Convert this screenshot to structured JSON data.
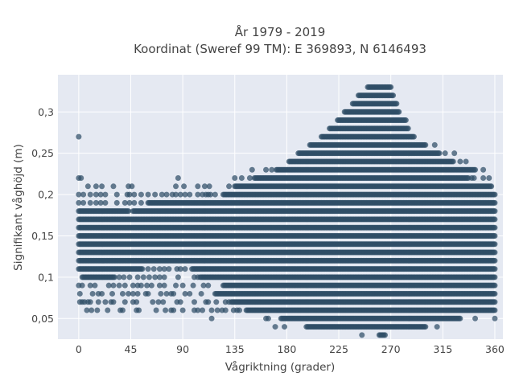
{
  "chart_data": {
    "type": "scatter",
    "title": "År 1979 - 2019",
    "subtitle": "Koordinat (Sweref 99 TM): E 369893, N 6146493",
    "xlabel": "Vågriktning (grader)",
    "ylabel": "Signifikant våghöjd (m)",
    "xlim": [
      -18,
      367
    ],
    "ylim": [
      0.025,
      0.345
    ],
    "x_ticks": [
      0,
      45,
      90,
      135,
      180,
      225,
      270,
      315,
      360
    ],
    "x_tick_labels": [
      "0",
      "45",
      "90",
      "135",
      "180",
      "225",
      "270",
      "315",
      "360"
    ],
    "y_ticks": [
      0.05,
      0.1,
      0.15,
      0.2,
      0.25,
      0.3
    ],
    "y_tick_labels": [
      "0,05",
      "0,1",
      "0,15",
      "0,2",
      "0,25",
      "0,3"
    ],
    "grid": true,
    "legend": "none",
    "marker_color": "#2f4e66",
    "plot_background": "#e5e9f2",
    "x_step": 1,
    "rows": [
      {
        "y": 0.03,
        "ranges": [
          [
            245,
            245
          ],
          [
            260,
            265
          ]
        ]
      },
      {
        "y": 0.04,
        "ranges": [
          [
            170,
            170
          ],
          [
            178,
            178
          ],
          [
            197,
            300
          ],
          [
            310,
            310
          ]
        ]
      },
      {
        "y": 0.05,
        "ranges": [
          [
            115,
            115
          ],
          [
            162,
            162
          ],
          [
            164,
            164
          ],
          [
            175,
            330
          ],
          [
            343,
            343
          ],
          [
            360,
            360
          ]
        ]
      },
      {
        "y": 0.06,
        "ranges": [
          [
            7,
            7
          ],
          [
            11,
            11
          ],
          [
            16,
            16
          ],
          [
            25,
            25
          ],
          [
            36,
            36
          ],
          [
            38,
            38
          ],
          [
            50,
            50
          ],
          [
            52,
            52
          ],
          [
            67,
            67
          ],
          [
            75,
            75
          ],
          [
            80,
            80
          ],
          [
            82,
            82
          ],
          [
            90,
            90
          ],
          [
            100,
            100
          ],
          [
            103,
            103
          ],
          [
            107,
            107
          ],
          [
            115,
            115
          ],
          [
            120,
            120
          ],
          [
            124,
            124
          ],
          [
            127,
            127
          ],
          [
            134,
            134
          ],
          [
            137,
            137
          ],
          [
            139,
            139
          ],
          [
            145,
            360
          ]
        ]
      },
      {
        "y": 0.07,
        "ranges": [
          [
            1,
            1
          ],
          [
            3,
            3
          ],
          [
            5,
            5
          ],
          [
            8,
            8
          ],
          [
            10,
            10
          ],
          [
            17,
            17
          ],
          [
            23,
            23
          ],
          [
            28,
            28
          ],
          [
            30,
            30
          ],
          [
            40,
            40
          ],
          [
            47,
            47
          ],
          [
            50,
            50
          ],
          [
            64,
            64
          ],
          [
            69,
            69
          ],
          [
            73,
            73
          ],
          [
            85,
            85
          ],
          [
            88,
            88
          ],
          [
            100,
            100
          ],
          [
            110,
            110
          ],
          [
            112,
            112
          ],
          [
            119,
            119
          ],
          [
            127,
            127
          ],
          [
            130,
            130
          ],
          [
            132,
            360
          ]
        ]
      },
      {
        "y": 0.08,
        "ranges": [
          [
            1,
            1
          ],
          [
            12,
            12
          ],
          [
            17,
            17
          ],
          [
            20,
            20
          ],
          [
            29,
            29
          ],
          [
            38,
            38
          ],
          [
            43,
            43
          ],
          [
            47,
            47
          ],
          [
            51,
            51
          ],
          [
            58,
            58
          ],
          [
            60,
            60
          ],
          [
            71,
            71
          ],
          [
            76,
            76
          ],
          [
            80,
            80
          ],
          [
            82,
            82
          ],
          [
            92,
            92
          ],
          [
            96,
            96
          ],
          [
            106,
            106
          ],
          [
            118,
            360
          ]
        ]
      },
      {
        "y": 0.09,
        "ranges": [
          [
            0,
            0
          ],
          [
            3,
            3
          ],
          [
            10,
            10
          ],
          [
            14,
            14
          ],
          [
            26,
            26
          ],
          [
            30,
            30
          ],
          [
            35,
            35
          ],
          [
            40,
            40
          ],
          [
            47,
            47
          ],
          [
            51,
            51
          ],
          [
            54,
            54
          ],
          [
            59,
            59
          ],
          [
            63,
            63
          ],
          [
            70,
            70
          ],
          [
            74,
            74
          ],
          [
            84,
            84
          ],
          [
            90,
            90
          ],
          [
            99,
            99
          ],
          [
            108,
            108
          ],
          [
            112,
            112
          ],
          [
            125,
            360
          ]
        ]
      },
      {
        "y": 0.1,
        "ranges": [
          [
            3,
            31
          ],
          [
            35,
            35
          ],
          [
            39,
            39
          ],
          [
            44,
            44
          ],
          [
            51,
            51
          ],
          [
            56,
            56
          ],
          [
            61,
            61
          ],
          [
            66,
            66
          ],
          [
            70,
            70
          ],
          [
            74,
            74
          ],
          [
            86,
            86
          ],
          [
            100,
            100
          ],
          [
            103,
            103
          ],
          [
            105,
            360
          ]
        ]
      },
      {
        "y": 0.11,
        "ranges": [
          [
            0,
            55
          ],
          [
            60,
            60
          ],
          [
            65,
            65
          ],
          [
            70,
            70
          ],
          [
            74,
            74
          ],
          [
            78,
            78
          ],
          [
            85,
            85
          ],
          [
            88,
            88
          ],
          [
            92,
            92
          ],
          [
            98,
            360
          ]
        ]
      },
      {
        "y": 0.12,
        "ranges": [
          [
            0,
            360
          ]
        ]
      },
      {
        "y": 0.13,
        "ranges": [
          [
            0,
            360
          ]
        ]
      },
      {
        "y": 0.14,
        "ranges": [
          [
            0,
            360
          ]
        ]
      },
      {
        "y": 0.15,
        "ranges": [
          [
            0,
            360
          ]
        ]
      },
      {
        "y": 0.16,
        "ranges": [
          [
            0,
            360
          ]
        ]
      },
      {
        "y": 0.17,
        "ranges": [
          [
            0,
            360
          ]
        ]
      },
      {
        "y": 0.18,
        "ranges": [
          [
            0,
            43
          ],
          [
            47,
            360
          ]
        ]
      },
      {
        "y": 0.19,
        "ranges": [
          [
            0,
            0
          ],
          [
            4,
            4
          ],
          [
            10,
            10
          ],
          [
            15,
            15
          ],
          [
            19,
            19
          ],
          [
            23,
            23
          ],
          [
            33,
            33
          ],
          [
            40,
            40
          ],
          [
            44,
            44
          ],
          [
            48,
            48
          ],
          [
            54,
            54
          ],
          [
            60,
            360
          ]
        ]
      },
      {
        "y": 0.2,
        "ranges": [
          [
            0,
            0
          ],
          [
            4,
            4
          ],
          [
            10,
            10
          ],
          [
            15,
            15
          ],
          [
            19,
            19
          ],
          [
            23,
            23
          ],
          [
            33,
            33
          ],
          [
            42,
            42
          ],
          [
            44,
            44
          ],
          [
            48,
            48
          ],
          [
            54,
            54
          ],
          [
            60,
            60
          ],
          [
            66,
            66
          ],
          [
            72,
            72
          ],
          [
            76,
            76
          ],
          [
            81,
            81
          ],
          [
            84,
            84
          ],
          [
            88,
            88
          ],
          [
            92,
            92
          ],
          [
            96,
            96
          ],
          [
            103,
            103
          ],
          [
            107,
            107
          ],
          [
            110,
            110
          ],
          [
            112,
            112
          ],
          [
            114,
            114
          ],
          [
            118,
            118
          ],
          [
            125,
            360
          ]
        ]
      },
      {
        "y": 0.21,
        "ranges": [
          [
            8,
            8
          ],
          [
            15,
            15
          ],
          [
            20,
            20
          ],
          [
            30,
            30
          ],
          [
            43,
            43
          ],
          [
            46,
            46
          ],
          [
            84,
            84
          ],
          [
            91,
            91
          ],
          [
            103,
            103
          ],
          [
            109,
            109
          ],
          [
            113,
            113
          ],
          [
            130,
            130
          ],
          [
            135,
            357
          ]
        ]
      },
      {
        "y": 0.22,
        "ranges": [
          [
            0,
            0
          ],
          [
            2,
            2
          ],
          [
            86,
            86
          ],
          [
            135,
            135
          ],
          [
            141,
            141
          ],
          [
            148,
            148
          ],
          [
            152,
            337
          ],
          [
            340,
            340
          ],
          [
            342,
            342
          ],
          [
            350,
            350
          ],
          [
            355,
            355
          ]
        ]
      },
      {
        "y": 0.23,
        "ranges": [
          [
            150,
            150
          ],
          [
            162,
            162
          ],
          [
            167,
            167
          ],
          [
            171,
            343
          ],
          [
            350,
            350
          ]
        ]
      },
      {
        "y": 0.24,
        "ranges": [
          [
            182,
            324
          ],
          [
            330,
            330
          ],
          [
            335,
            335
          ]
        ]
      },
      {
        "y": 0.25,
        "ranges": [
          [
            190,
            312
          ],
          [
            317,
            317
          ],
          [
            325,
            325
          ]
        ]
      },
      {
        "y": 0.26,
        "ranges": [
          [
            200,
            300
          ],
          [
            308,
            308
          ]
        ]
      },
      {
        "y": 0.27,
        "ranges": [
          [
            0,
            0
          ],
          [
            210,
            290
          ]
        ]
      },
      {
        "y": 0.28,
        "ranges": [
          [
            217,
            285
          ]
        ]
      },
      {
        "y": 0.29,
        "ranges": [
          [
            224,
            283
          ]
        ]
      },
      {
        "y": 0.3,
        "ranges": [
          [
            230,
            277
          ]
        ]
      },
      {
        "y": 0.31,
        "ranges": [
          [
            237,
            275
          ]
        ]
      },
      {
        "y": 0.32,
        "ranges": [
          [
            242,
            272
          ]
        ]
      },
      {
        "y": 0.33,
        "ranges": [
          [
            250,
            270
          ]
        ]
      }
    ]
  }
}
